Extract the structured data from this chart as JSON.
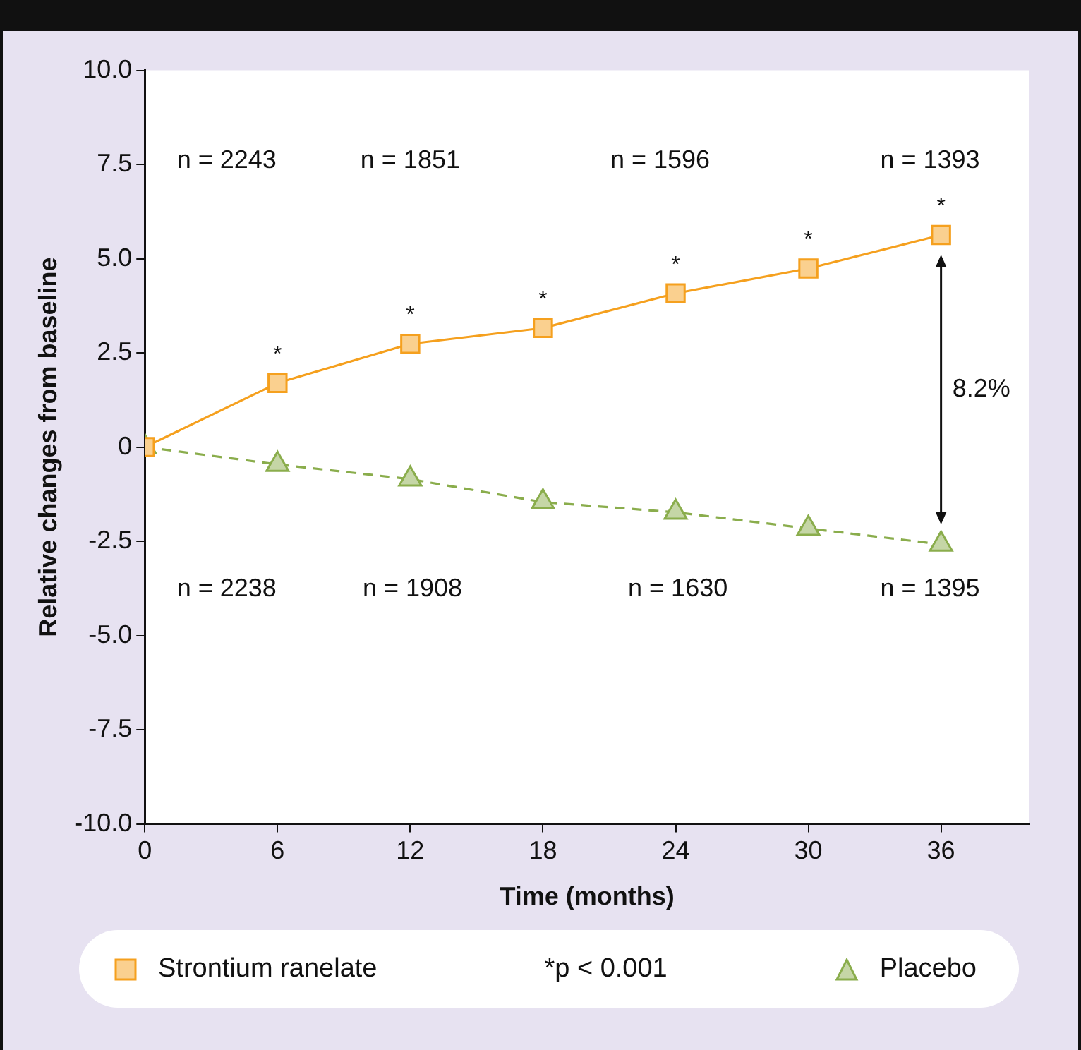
{
  "chart_data": {
    "type": "line",
    "xlabel": "Time (months)",
    "ylabel": "Relative changes from baseline",
    "x": [
      0,
      6,
      12,
      18,
      24,
      30,
      36
    ],
    "series": [
      {
        "name": "Strontium ranelate",
        "color": "#f5a01e",
        "marker": "square",
        "line_style": "solid",
        "values": [
          0,
          1.7,
          2.74,
          3.16,
          4.08,
          4.74,
          5.63
        ]
      },
      {
        "name": "Placebo",
        "color": "#8aad4c",
        "marker": "triangle",
        "line_style": "dashed",
        "values": [
          0,
          -0.46,
          -0.85,
          -1.46,
          -1.73,
          -2.16,
          -2.58
        ]
      }
    ],
    "xlim": [
      0,
      40
    ],
    "xticks": [
      0,
      6,
      12,
      18,
      24,
      30,
      36
    ],
    "ylim": [
      -10,
      10
    ],
    "yticks": [
      {
        "value": -10,
        "label": "-10.0"
      },
      -7.5,
      {
        "value": -5,
        "label": "-5.0"
      },
      -2.5,
      0,
      2.5,
      {
        "value": 5,
        "label": "5.0"
      },
      7.5,
      {
        "value": 10,
        "label": "10.0"
      }
    ],
    "grid": false,
    "legend": "bottom",
    "annotations": [
      "n = 2243",
      "n = 1851",
      "n = 1596",
      "n = 1393",
      "n = 2238",
      "n = 1908",
      "n = 1630",
      "n = 1395",
      {
        "text": "*",
        "x": 6,
        "y": 1.7
      },
      {
        "text": "*",
        "x": 12,
        "y": 2.74
      },
      {
        "text": "*",
        "x": 18,
        "y": 3.16
      },
      {
        "text": "*",
        "x": 24,
        "y": 4.08
      },
      {
        "text": "*",
        "x": 30,
        "y": 4.74
      },
      {
        "text": "*",
        "x": 36,
        "y": 5.63
      },
      "8.2%",
      "*p < 0.001"
    ]
  }
}
